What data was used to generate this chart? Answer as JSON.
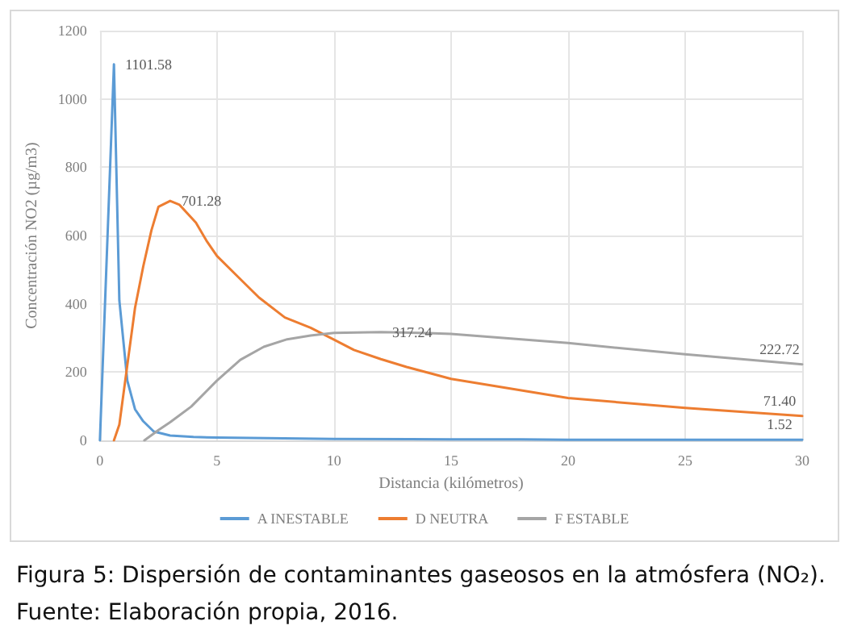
{
  "chart_data": {
    "type": "line",
    "xlabel": "Distancia (kilómetros)",
    "ylabel": "Concentración NO2 (µg/m3)",
    "xlim": [
      0,
      30
    ],
    "xticks": [
      0,
      5,
      10,
      15,
      20,
      25,
      30
    ],
    "ylim": [
      0,
      1200
    ],
    "yticks": [
      0,
      200,
      400,
      600,
      800,
      1000,
      1200
    ],
    "grid": true,
    "legend": "bottom",
    "marker": "none",
    "line_style": "solid",
    "series": [
      {
        "name": "A INESTABLE",
        "color": "#5b9bd5",
        "x": [
          0,
          0.6,
          0.83,
          1.17,
          1.5,
          1.85,
          2.3,
          3,
          4,
          5,
          10,
          15,
          18,
          20,
          25,
          30
        ],
        "values": [
          0,
          1101.58,
          410,
          175,
          91,
          56,
          26,
          14,
          10,
          8,
          4,
          3,
          3,
          2,
          2,
          1.52
        ],
        "value_labels": [
          null,
          "1101.58",
          null,
          null,
          null,
          null,
          null,
          null,
          null,
          null,
          null,
          null,
          null,
          null,
          null,
          "1.52"
        ]
      },
      {
        "name": "D NEUTRA",
        "color": "#ed7d31",
        "x": [
          0.6,
          0.83,
          1.17,
          1.5,
          1.85,
          2.2,
          2.5,
          3,
          3.4,
          4.1,
          4.55,
          5,
          5.9,
          6.8,
          7.9,
          9,
          10,
          10.85,
          12,
          13.1,
          14.2,
          15,
          20,
          25,
          30
        ],
        "values": [
          0,
          46,
          220,
          388,
          509,
          615,
          684,
          701.28,
          690,
          638,
          585,
          540,
          479,
          418,
          360,
          330,
          295,
          265,
          238,
          215,
          195,
          180,
          124,
          95,
          71.4
        ],
        "value_labels": [
          null,
          null,
          null,
          null,
          null,
          null,
          null,
          "701.28",
          null,
          null,
          null,
          null,
          null,
          null,
          null,
          null,
          null,
          null,
          null,
          null,
          null,
          null,
          null,
          null,
          "71.40"
        ]
      },
      {
        "name": "F ESTABLE",
        "color": "#a5a5a5",
        "x": [
          1.9,
          2.5,
          3,
          3.9,
          5,
          6,
          7,
          8,
          9,
          10,
          12,
          14,
          15,
          20,
          25,
          30
        ],
        "values": [
          0,
          30,
          53,
          99,
          175,
          236,
          274,
          296,
          307,
          315,
          317.24,
          314,
          312,
          285,
          252,
          222.72
        ],
        "value_labels": [
          null,
          null,
          null,
          null,
          null,
          null,
          null,
          null,
          null,
          null,
          "317.24",
          null,
          null,
          null,
          null,
          "222.72"
        ]
      }
    ],
    "annotations": [
      "Figura 5: Dispersión de contaminantes gaseosos en la atmósfera (NO₂).",
      "Fuente: Elaboración propia, 2016."
    ]
  }
}
